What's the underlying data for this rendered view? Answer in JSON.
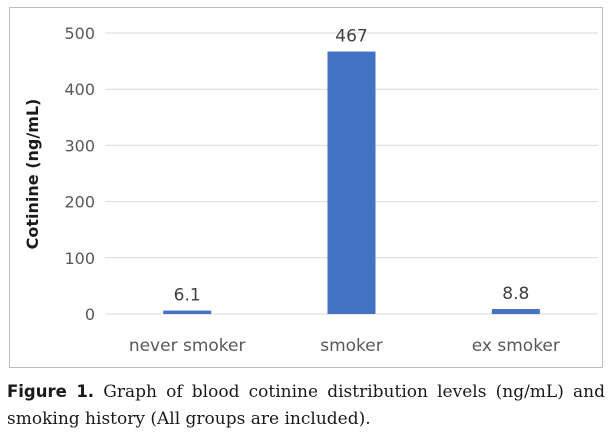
{
  "chart_data": {
    "type": "bar",
    "categories": [
      "never smoker",
      "smoker",
      "ex smoker"
    ],
    "values": [
      6.1,
      467,
      8.8
    ],
    "data_labels": [
      "6.1",
      "467",
      "8.8"
    ],
    "title": "",
    "xlabel": "",
    "ylabel": "Cotinine (ng/mL)",
    "ylim": [
      0,
      500
    ],
    "yticks": [
      0,
      100,
      200,
      300,
      400,
      500
    ],
    "grid": true,
    "legend": "none",
    "bar_color": "#4472c4",
    "grid_color": "#d9d9d9",
    "text_color": "#595959"
  },
  "caption": {
    "label": "Figure 1.",
    "text": "Graph of blood cotinine distribution levels (ng/mL) and smoking history (All groups are included)."
  }
}
